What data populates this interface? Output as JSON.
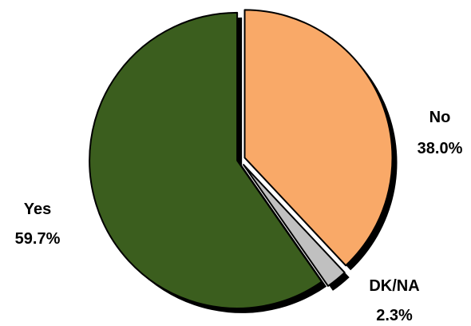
{
  "chart_data": {
    "type": "pie",
    "categories": [
      "No",
      "DK/NA",
      "Yes"
    ],
    "values": [
      38.0,
      2.3,
      59.7
    ],
    "value_labels": [
      "38.0%",
      "2.3%",
      "59.7%"
    ],
    "colors": [
      "#F9A968",
      "#C0C0C0",
      "#3B5E1E"
    ],
    "start_angle_deg": 0,
    "direction": "clockwise",
    "exploded": true,
    "shadow": true,
    "title": "",
    "legend": "none"
  }
}
